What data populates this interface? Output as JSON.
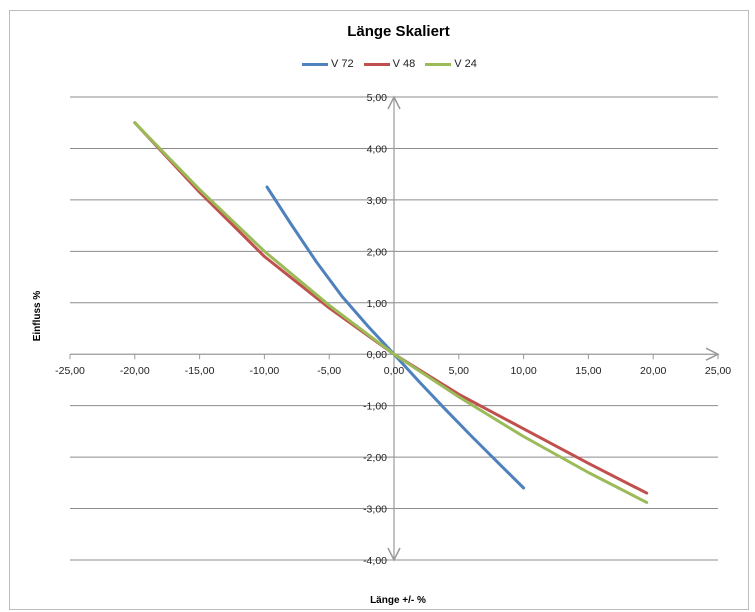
{
  "chart_data": {
    "type": "line",
    "title": "Länge Skaliert",
    "xlabel": "Länge +/- %",
    "ylabel": "Einfluss %",
    "xlim": [
      -25,
      25
    ],
    "ylim": [
      -4,
      5
    ],
    "x_ticks": [
      "-25,00",
      "-20,00",
      "-15,00",
      "-10,00",
      "-5,00",
      "0,00",
      "5,00",
      "10,00",
      "15,00",
      "20,00",
      "25,00"
    ],
    "y_ticks": [
      "5,00",
      "4,00",
      "3,00",
      "2,00",
      "1,00",
      "0,00",
      "-1,00",
      "-2,00",
      "-3,00",
      "-4,00"
    ],
    "grid": true,
    "legend_position": "top",
    "series": [
      {
        "name": "V 72",
        "color": "#4f81bd",
        "x": [
          -9.8,
          -8,
          -6,
          -4,
          -2,
          0,
          2,
          4,
          6,
          8,
          10
        ],
        "y": [
          3.25,
          2.55,
          1.8,
          1.12,
          0.54,
          0.0,
          -0.55,
          -1.08,
          -1.6,
          -2.1,
          -2.6
        ]
      },
      {
        "name": "V 48",
        "color": "#c0504d",
        "x": [
          -20,
          -15,
          -10,
          -5,
          0,
          5,
          10,
          15,
          19.5
        ],
        "y": [
          4.5,
          3.15,
          1.9,
          0.9,
          0.0,
          -0.78,
          -1.45,
          -2.12,
          -2.7
        ]
      },
      {
        "name": "V 24",
        "color": "#9bbb59",
        "x": [
          -20,
          -15,
          -10,
          -5,
          0,
          5,
          10,
          15,
          19.5
        ],
        "y": [
          4.5,
          3.2,
          2.0,
          0.95,
          0.0,
          -0.83,
          -1.6,
          -2.3,
          -2.88
        ]
      }
    ]
  }
}
